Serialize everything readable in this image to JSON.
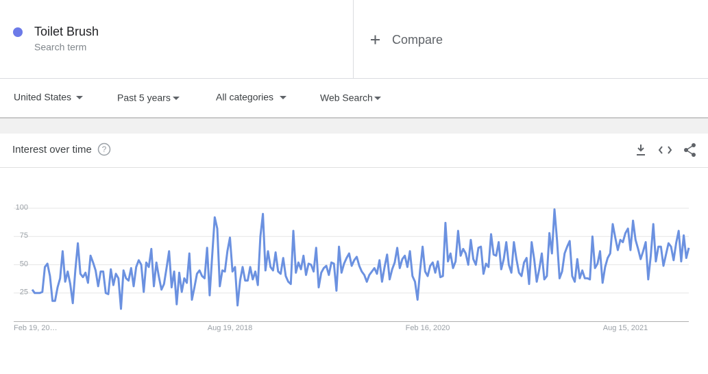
{
  "header": {
    "term": "Toilet Brush",
    "term_subtitle": "Search term",
    "compare": "Compare"
  },
  "filters": [
    "United States",
    "Past 5 years",
    "All categories",
    "Web Search"
  ],
  "card": {
    "title": "Interest over time"
  },
  "chart_data": {
    "type": "line",
    "color": "#6b91e0",
    "grid": true,
    "ylim": [
      0,
      100
    ],
    "yticks": [
      25,
      50,
      75,
      100
    ],
    "categories": [
      "Feb 19, 20…",
      null,
      null,
      null,
      null,
      null,
      null,
      null,
      null,
      null,
      null,
      null,
      null,
      null,
      null,
      null,
      null,
      null,
      null,
      null,
      null,
      null,
      null,
      null,
      null,
      null,
      null,
      null,
      null,
      null,
      null,
      null,
      null,
      null,
      null,
      null,
      null,
      null,
      null,
      null,
      null,
      null,
      null,
      null,
      null,
      null,
      null,
      null,
      null,
      null,
      null,
      null,
      null,
      null,
      null,
      null,
      null,
      null,
      null,
      null,
      null,
      null,
      null,
      null,
      null,
      null,
      null,
      null,
      null,
      null,
      null,
      null,
      null,
      null,
      null,
      null,
      null,
      null,
      "Aug 19, 2018",
      null,
      null,
      null,
      null,
      null,
      null,
      null,
      null,
      null,
      null,
      null,
      null,
      null,
      null,
      null,
      null,
      null,
      null,
      null,
      null,
      null,
      null,
      null,
      null,
      null,
      null,
      null,
      null,
      null,
      null,
      null,
      null,
      null,
      null,
      null,
      null,
      null,
      null,
      null,
      null,
      null,
      null,
      null,
      null,
      null,
      null,
      null,
      null,
      null,
      null,
      null,
      null,
      null,
      null,
      null,
      null,
      null,
      null,
      null,
      null,
      null,
      null,
      null,
      null,
      null,
      null,
      null,
      null,
      null,
      null,
      null,
      null,
      null,
      null,
      null,
      null,
      null,
      "Feb 16, 2020",
      null,
      null,
      null,
      null,
      null,
      null,
      null,
      null,
      null,
      null,
      null,
      null,
      null,
      null,
      null,
      null,
      null,
      null,
      null,
      null,
      null,
      null,
      null,
      null,
      null,
      null,
      null,
      null,
      null,
      null,
      null,
      null,
      null,
      null,
      null,
      null,
      null,
      null,
      null,
      null,
      null,
      null,
      null,
      null,
      null,
      null,
      null,
      null,
      null,
      null,
      null,
      null,
      null,
      null,
      null,
      null,
      null,
      null,
      null,
      null,
      null,
      null,
      null,
      null,
      null,
      null,
      null,
      null,
      null,
      null,
      null,
      null,
      null,
      null,
      null,
      null,
      null,
      "Aug 15, 2021",
      null,
      null,
      null,
      null,
      null,
      null,
      null,
      null,
      null,
      null,
      null,
      null,
      null,
      null,
      null,
      null,
      null,
      null,
      null,
      null,
      null,
      null,
      null,
      null,
      null
    ],
    "values": [
      28,
      25,
      25,
      25,
      26,
      48,
      51,
      40,
      18,
      18,
      30,
      38,
      62,
      35,
      44,
      33,
      16,
      45,
      69,
      42,
      39,
      43,
      34,
      58,
      52,
      45,
      31,
      44,
      44,
      25,
      24,
      46,
      32,
      42,
      38,
      11,
      45,
      38,
      36,
      47,
      31,
      48,
      54,
      50,
      26,
      52,
      48,
      64,
      31,
      52,
      39,
      28,
      33,
      47,
      62,
      30,
      44,
      15,
      43,
      26,
      38,
      34,
      60,
      19,
      30,
      42,
      45,
      40,
      38,
      65,
      23,
      58,
      92,
      82,
      31,
      45,
      44,
      62,
      74,
      44,
      48,
      14,
      36,
      48,
      36,
      36,
      48,
      37,
      44,
      32,
      75,
      95,
      45,
      62,
      48,
      45,
      61,
      44,
      42,
      56,
      40,
      35,
      33,
      80,
      43,
      52,
      46,
      58,
      41,
      51,
      50,
      44,
      65,
      30,
      43,
      47,
      49,
      41,
      52,
      51,
      27,
      66,
      43,
      51,
      56,
      60,
      49,
      54,
      57,
      49,
      44,
      41,
      35,
      41,
      44,
      47,
      42,
      54,
      35,
      48,
      59,
      37,
      46,
      52,
      65,
      47,
      55,
      58,
      48,
      62,
      40,
      35,
      19,
      45,
      66,
      44,
      40,
      49,
      52,
      43,
      53,
      39,
      40,
      87,
      53,
      60,
      47,
      53,
      80,
      58,
      64,
      60,
      50,
      72,
      55,
      50,
      65,
      66,
      42,
      51,
      48,
      77,
      59,
      58,
      70,
      46,
      55,
      70,
      50,
      43,
      70,
      55,
      43,
      40,
      52,
      56,
      33,
      70,
      55,
      35,
      46,
      60,
      37,
      40,
      78,
      60,
      99,
      72,
      38,
      44,
      60,
      66,
      71,
      40,
      35,
      55,
      38,
      45,
      38,
      38,
      37,
      75,
      47,
      51,
      62,
      34,
      48,
      56,
      60,
      86,
      74,
      63,
      72,
      70,
      78,
      82,
      63,
      89,
      72,
      64,
      55,
      62,
      70,
      37,
      58,
      86,
      53,
      66,
      66,
      49,
      59,
      69,
      66,
      54,
      69,
      80,
      53,
      76,
      56,
      65
    ]
  }
}
